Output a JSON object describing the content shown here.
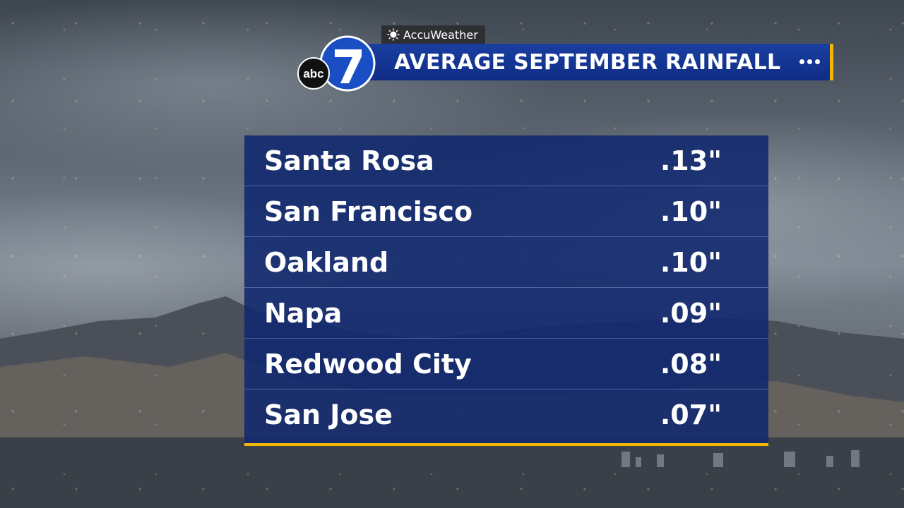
{
  "header": {
    "brand": "AccuWeather",
    "brand_icon": "sun-icon",
    "title": "AVERAGE SEPTEMBER RAINFALL",
    "logo_text": "abc",
    "logo_number": "7"
  },
  "colors": {
    "title_bar": "#0f2c86",
    "accent": "#f2b705",
    "panel": "#10286e"
  },
  "rainfall": {
    "rows": [
      {
        "city": "Santa Rosa",
        "value": ".13\""
      },
      {
        "city": "San Francisco",
        "value": ".10\""
      },
      {
        "city": "Oakland",
        "value": ".10\""
      },
      {
        "city": "Napa",
        "value": ".09\""
      },
      {
        "city": "Redwood City",
        "value": ".08\""
      },
      {
        "city": "San Jose",
        "value": ".07\""
      }
    ]
  }
}
